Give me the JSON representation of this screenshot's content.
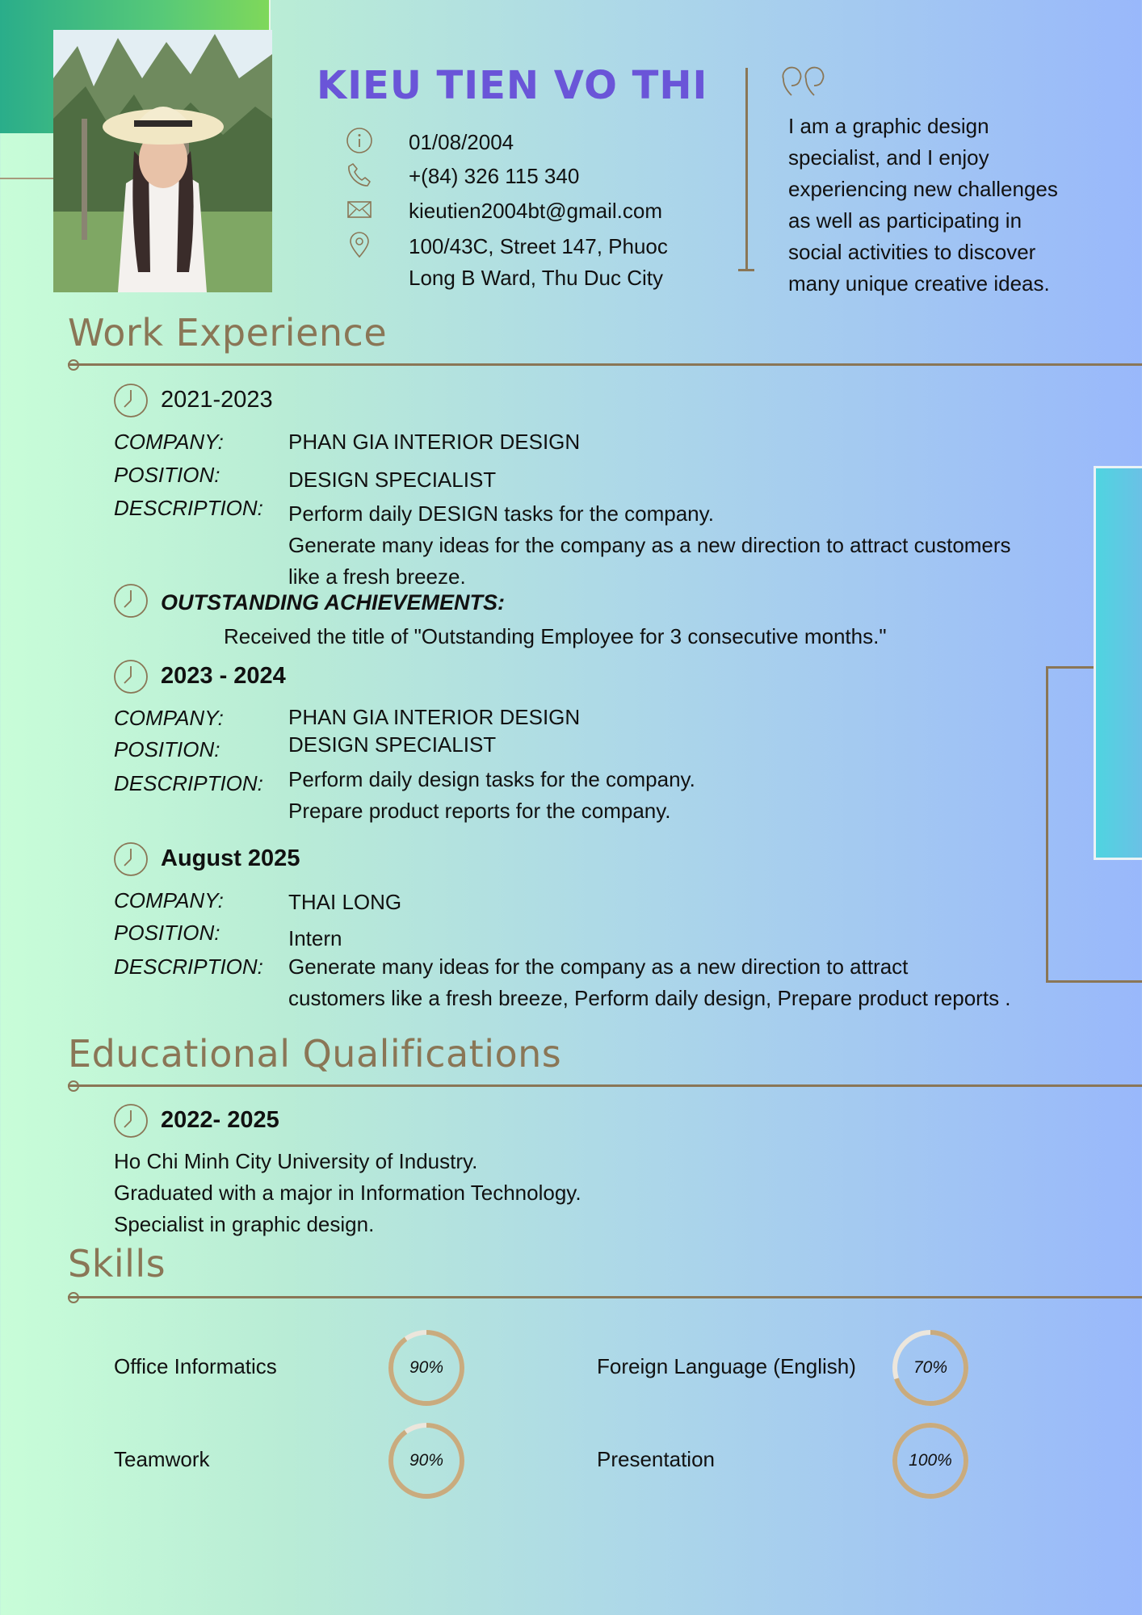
{
  "header": {
    "name": "KIEU TIEN VO THI",
    "contacts": [
      {
        "icon": "info-icon",
        "text": "01/08/2004"
      },
      {
        "icon": "phone-icon",
        "text": "+(84) 326 115 340"
      },
      {
        "icon": "mail-icon",
        "text": "kieutien2004bt@gmail.com"
      },
      {
        "icon": "location-pin-icon",
        "text": "100/43C, Street 147, Phuoc",
        "text2": "Long B Ward, Thu Duc City"
      }
    ],
    "about": [
      "I am a graphic design",
      "specialist, and I enjoy",
      "experiencing new challenges",
      "as well as participating in",
      "social activities to discover",
      "many unique creative ideas."
    ]
  },
  "work": {
    "title": "Work Experience",
    "labels": {
      "company": "COMPANY:",
      "position": "POSITION:",
      "description": "DESCRIPTION:"
    },
    "jobs": [
      {
        "period": "2021-2023",
        "company": "PHAN GIA INTERIOR DESIGN",
        "position": "DESIGN SPECIALIST",
        "description": [
          "Perform daily DESIGN tasks for the company.",
          "Generate many ideas for the company as a new direction to attract customers",
          "like a fresh breeze."
        ]
      },
      {
        "period": "2023 - 2024",
        "company": "PHAN GIA INTERIOR DESIGN",
        "position": "DESIGN SPECIALIST",
        "description": [
          "Perform daily design tasks for the company.",
          "Prepare product reports for the company."
        ]
      },
      {
        "period": "August 2025",
        "company": "THAI LONG",
        "position": "Intern",
        "description": [
          "Generate many ideas for the company as a new direction to attract",
          "customers like a fresh breeze, Perform daily design, Prepare product reports ."
        ]
      }
    ],
    "achievement": {
      "title": "OUTSTANDING ACHIEVEMENTS:",
      "text": "Received the title of \"Outstanding Employee for 3 consecutive months.\""
    }
  },
  "education": {
    "title": "Educational Qualifications",
    "period": "2022- 2025",
    "lines": [
      "Ho Chi Minh City University of Industry.",
      "Graduated with a major in Information Technology.",
      "Specialist in graphic design."
    ]
  },
  "skills": {
    "title": "Skills",
    "items": [
      {
        "name": "Office Informatics",
        "percent": 90,
        "label": "90%"
      },
      {
        "name": "Foreign Language (English)",
        "percent": 70,
        "label": "70%"
      },
      {
        "name": "Teamwork",
        "percent": 90,
        "label": "90%"
      },
      {
        "name": "Presentation",
        "percent": 100,
        "label": "100%"
      }
    ]
  },
  "colors": {
    "accent": "#8a7656",
    "name": "#6a55d8",
    "ring": "#c9ab7e",
    "ring_track": "#ece6dc"
  }
}
